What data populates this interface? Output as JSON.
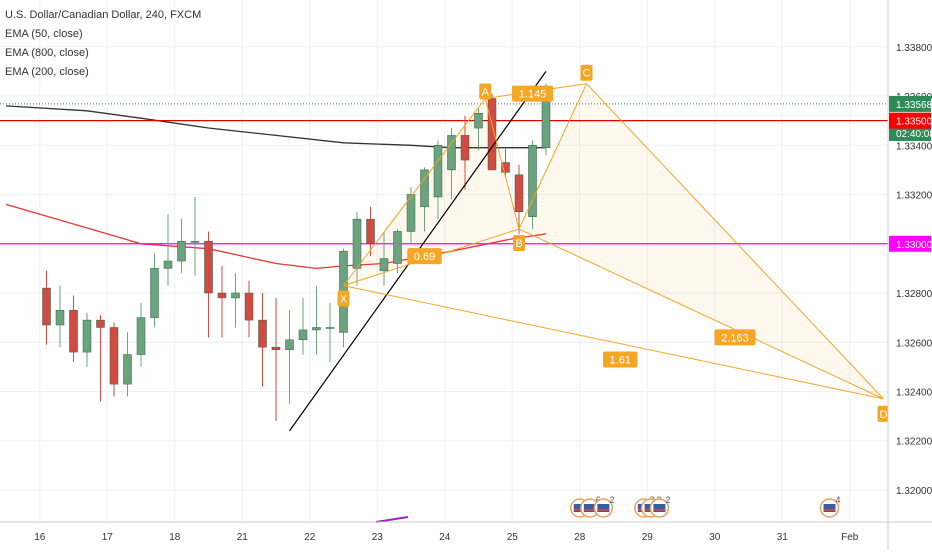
{
  "legend": {
    "title": "U.S. Dollar/Canadian Dollar, 240, FXCM",
    "indicators": [
      "EMA (50, close)",
      "EMA (800, close)",
      "EMA (200, close)"
    ]
  },
  "chart_data": {
    "type": "candlestick",
    "symbol": "U.S. Dollar/Canadian Dollar",
    "interval": "240",
    "source": "FXCM",
    "ylim": [
      1.3187,
      1.3399
    ],
    "x_ticks": [
      "16",
      "17",
      "18",
      "21",
      "22",
      "23",
      "24",
      "25",
      "28",
      "29",
      "30",
      "31",
      "Feb"
    ],
    "y_ticks": [
      1.322,
      1.324,
      1.326,
      1.328,
      1.33,
      1.332,
      1.334,
      1.336,
      1.338
    ],
    "y_tick_labels": [
      "1.32200",
      "1.32400",
      "1.32600",
      "1.32800",
      "1.33000",
      "1.33200",
      "1.33400",
      "1.33600",
      "1.33800"
    ],
    "bottom_tick_label": "1.32000",
    "price_labels": [
      {
        "value": 1.33568,
        "text": "1.33568",
        "color": "#2e8b57"
      },
      {
        "value": 1.3345,
        "text": "02:40:08",
        "color": "#2e8b57"
      },
      {
        "value": 1.335,
        "text": "1.33500",
        "color": "#ff0000"
      },
      {
        "value": 1.33,
        "text": "1.33000",
        "color": "#ff00ff"
      }
    ],
    "hlines": [
      {
        "value": 1.33568,
        "color": "#2e8b57",
        "style": "dotted"
      },
      {
        "value": 1.335,
        "color": "#e00000",
        "style": "solid"
      },
      {
        "value": 1.33,
        "color": "#ff00ff",
        "style": "solid"
      }
    ],
    "candles": [
      {
        "x": 0.6,
        "o": 1.3282,
        "h": 1.3289,
        "l": 1.3259,
        "c": 1.3267
      },
      {
        "x": 0.8,
        "o": 1.3267,
        "h": 1.3283,
        "l": 1.3258,
        "c": 1.3273
      },
      {
        "x": 1.0,
        "o": 1.3273,
        "h": 1.3279,
        "l": 1.3252,
        "c": 1.3256
      },
      {
        "x": 1.2,
        "o": 1.3256,
        "h": 1.3272,
        "l": 1.325,
        "c": 1.3269
      },
      {
        "x": 1.4,
        "o": 1.3269,
        "h": 1.3271,
        "l": 1.3236,
        "c": 1.3266
      },
      {
        "x": 1.6,
        "o": 1.3266,
        "h": 1.3268,
        "l": 1.3238,
        "c": 1.3243
      },
      {
        "x": 1.8,
        "o": 1.3243,
        "h": 1.3264,
        "l": 1.3238,
        "c": 1.3255
      },
      {
        "x": 2.0,
        "o": 1.3255,
        "h": 1.3276,
        "l": 1.325,
        "c": 1.327
      },
      {
        "x": 2.2,
        "o": 1.327,
        "h": 1.3296,
        "l": 1.3266,
        "c": 1.329
      },
      {
        "x": 2.4,
        "o": 1.329,
        "h": 1.3312,
        "l": 1.3283,
        "c": 1.3293
      },
      {
        "x": 2.6,
        "o": 1.3293,
        "h": 1.331,
        "l": 1.3288,
        "c": 1.3301
      },
      {
        "x": 2.8,
        "o": 1.3301,
        "h": 1.3319,
        "l": 1.3287,
        "c": 1.3301
      },
      {
        "x": 3.0,
        "o": 1.3301,
        "h": 1.3305,
        "l": 1.3262,
        "c": 1.328
      },
      {
        "x": 3.2,
        "o": 1.328,
        "h": 1.3291,
        "l": 1.3262,
        "c": 1.3278
      },
      {
        "x": 3.4,
        "o": 1.3278,
        "h": 1.3288,
        "l": 1.3266,
        "c": 1.328
      },
      {
        "x": 3.6,
        "o": 1.328,
        "h": 1.3285,
        "l": 1.3262,
        "c": 1.3269
      },
      {
        "x": 3.8,
        "o": 1.3269,
        "h": 1.328,
        "l": 1.3242,
        "c": 1.3258
      },
      {
        "x": 4.0,
        "o": 1.3258,
        "h": 1.3278,
        "l": 1.3228,
        "c": 1.3257
      },
      {
        "x": 4.2,
        "o": 1.3257,
        "h": 1.3273,
        "l": 1.3235,
        "c": 1.3261
      },
      {
        "x": 4.4,
        "o": 1.3261,
        "h": 1.3278,
        "l": 1.3255,
        "c": 1.3265
      },
      {
        "x": 4.6,
        "o": 1.3265,
        "h": 1.3283,
        "l": 1.3255,
        "c": 1.3266
      },
      {
        "x": 4.8,
        "o": 1.3266,
        "h": 1.3276,
        "l": 1.3252,
        "c": 1.3266
      },
      {
        "x": 5.0,
        "o": 1.3264,
        "h": 1.3298,
        "l": 1.3258,
        "c": 1.3297
      },
      {
        "x": 5.2,
        "o": 1.329,
        "h": 1.3313,
        "l": 1.3283,
        "c": 1.331
      },
      {
        "x": 5.4,
        "o": 1.331,
        "h": 1.3315,
        "l": 1.3295,
        "c": 1.33
      },
      {
        "x": 5.6,
        "o": 1.3289,
        "h": 1.3305,
        "l": 1.3283,
        "c": 1.3294
      },
      {
        "x": 5.8,
        "o": 1.3292,
        "h": 1.3306,
        "l": 1.3288,
        "c": 1.3305
      },
      {
        "x": 6.0,
        "o": 1.3305,
        "h": 1.3323,
        "l": 1.33,
        "c": 1.332
      },
      {
        "x": 6.2,
        "o": 1.3315,
        "h": 1.3331,
        "l": 1.3305,
        "c": 1.333
      },
      {
        "x": 6.4,
        "o": 1.3319,
        "h": 1.3342,
        "l": 1.331,
        "c": 1.334
      },
      {
        "x": 6.6,
        "o": 1.333,
        "h": 1.3347,
        "l": 1.3318,
        "c": 1.3344
      },
      {
        "x": 6.8,
        "o": 1.3344,
        "h": 1.3352,
        "l": 1.3322,
        "c": 1.3334
      },
      {
        "x": 7.0,
        "o": 1.3347,
        "h": 1.3355,
        "l": 1.3338,
        "c": 1.3353
      },
      {
        "x": 7.2,
        "o": 1.3359,
        "h": 1.3361,
        "l": 1.333,
        "c": 1.333
      },
      {
        "x": 7.4,
        "o": 1.3333,
        "h": 1.3339,
        "l": 1.3327,
        "c": 1.3329
      },
      {
        "x": 7.6,
        "o": 1.3328,
        "h": 1.3332,
        "l": 1.3304,
        "c": 1.3313
      },
      {
        "x": 7.8,
        "o": 1.3311,
        "h": 1.3342,
        "l": 1.3306,
        "c": 1.334
      },
      {
        "x": 8.0,
        "o": 1.3339,
        "h": 1.3365,
        "l": 1.3336,
        "c": 1.3362
      }
    ],
    "ema_series": [
      {
        "name": "EMA (50, close)",
        "color": "#e53935",
        "x": [
          0.0,
          1.5,
          2.0,
          3.0,
          4.0,
          4.6,
          5.0,
          5.6,
          6.6,
          7.5,
          8.0
        ],
        "y": [
          1.3316,
          1.3304,
          1.33,
          1.3298,
          1.3292,
          1.329,
          1.3291,
          1.3292,
          1.3297,
          1.3302,
          1.3304
        ]
      },
      {
        "name": "EMA (200, close)",
        "color": "#333333",
        "x": [
          0.0,
          1.2,
          2.0,
          3.0,
          4.0,
          5.0,
          6.0,
          6.6,
          7.0,
          7.6,
          8.0
        ],
        "y": [
          1.3356,
          1.3354,
          1.3351,
          1.3347,
          1.3344,
          1.3341,
          1.334,
          1.3339,
          1.3339,
          1.3339,
          1.3339
        ]
      }
    ],
    "trendline": {
      "color": "#000000",
      "points": [
        {
          "x": 4.2,
          "y": 1.3224
        },
        {
          "x": 8.0,
          "y": 1.337
        }
      ]
    },
    "harmonic_pattern": {
      "color": "#f5a623",
      "points": [
        {
          "label": "X",
          "x": 5.0,
          "y": 1.3283
        },
        {
          "label": "A",
          "x": 7.1,
          "y": 1.3359
        },
        {
          "label": "B",
          "x": 7.6,
          "y": 1.3306
        },
        {
          "label": "C",
          "x": 8.6,
          "y": 1.3365
        },
        {
          "label": "D",
          "x": 13.0,
          "y": 1.3237
        }
      ],
      "ratios": [
        {
          "text": "1.145",
          "x": 7.8,
          "y": 1.3361
        },
        {
          "text": "0.69",
          "x": 6.2,
          "y": 1.3295
        },
        {
          "text": "2.163",
          "x": 10.8,
          "y": 1.3262
        },
        {
          "text": "1.61",
          "x": 9.1,
          "y": 1.3253
        }
      ]
    },
    "event_markers": [
      {
        "x": 8.5,
        "count": null
      },
      {
        "x": 8.65,
        "count": "6"
      },
      {
        "x": 8.85,
        "count": "2"
      },
      {
        "x": 9.45,
        "count": "3"
      },
      {
        "x": 9.55,
        "count": "3"
      },
      {
        "x": 9.68,
        "count": "2"
      },
      {
        "x": 12.2,
        "count": "4"
      }
    ],
    "colors": {
      "up": "#6aa37e",
      "down": "#d24b42",
      "grid": "#edf0f3",
      "pattern": "#f5a623",
      "axis_text": "#333333"
    }
  }
}
